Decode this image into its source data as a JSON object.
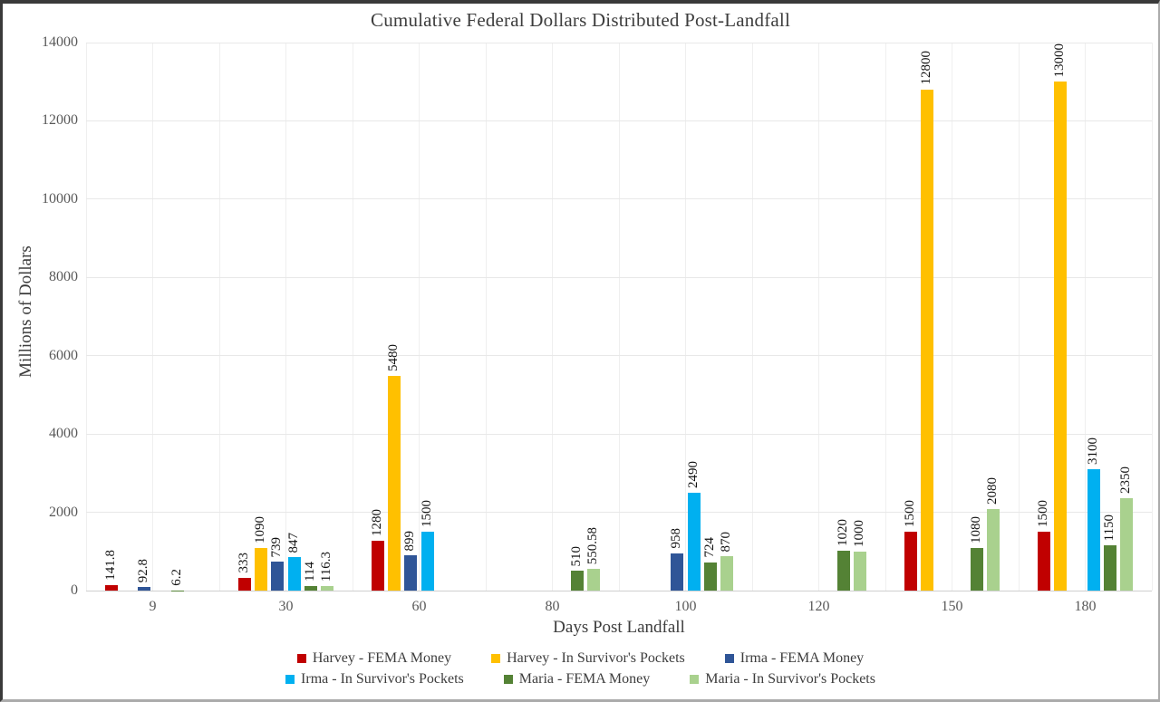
{
  "chart_data": {
    "type": "bar",
    "title": "Cumulative Federal Dollars Distributed Post-Landfall",
    "xlabel": "Days Post Landfall",
    "ylabel": "Millions of Dollars",
    "ylim": [
      0,
      14000
    ],
    "ytick_step": 2000,
    "grid": true,
    "legend_position": "bottom",
    "categories": [
      "9",
      "30",
      "60",
      "80",
      "100",
      "120",
      "150",
      "180"
    ],
    "series": [
      {
        "name": "Harvey - FEMA Money",
        "color": "#C00000",
        "values": [
          141.8,
          333,
          1280,
          null,
          null,
          null,
          1500,
          1500
        ]
      },
      {
        "name": "Harvey - In Survivor's Pockets",
        "color": "#FFC000",
        "values": [
          null,
          1090,
          5480,
          null,
          null,
          null,
          12800,
          13000
        ]
      },
      {
        "name": "Irma - FEMA Money",
        "color": "#2F5597",
        "values": [
          92.8,
          739,
          899,
          null,
          958,
          null,
          null,
          null
        ]
      },
      {
        "name": "Irma - In Survivor's Pockets",
        "color": "#00B0F0",
        "values": [
          null,
          847,
          1500,
          null,
          2490,
          null,
          null,
          3100
        ]
      },
      {
        "name": "Maria - FEMA Money",
        "color": "#548235",
        "values": [
          6.2,
          114,
          null,
          510,
          724,
          1020,
          1080,
          1150
        ]
      },
      {
        "name": "Maria - In Survivor's Pockets",
        "color": "#A9D18E",
        "values": [
          null,
          116.3,
          null,
          550.58,
          870,
          1000,
          2080,
          2350
        ]
      }
    ]
  }
}
